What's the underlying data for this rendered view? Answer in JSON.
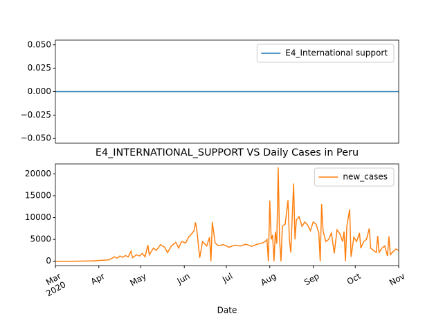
{
  "chart_data": [
    {
      "type": "line",
      "xlim": [
        0,
        245
      ],
      "ylim": [
        -0.055,
        0.055
      ],
      "yticks": [
        {
          "value": -0.05,
          "label": "−0.050"
        },
        {
          "value": -0.025,
          "label": "−0.025"
        },
        {
          "value": 0,
          "label": "0.000"
        },
        {
          "value": 0.025,
          "label": "0.025"
        },
        {
          "value": 0.05,
          "label": "0.050"
        }
      ],
      "legend": "upper right",
      "series": [
        {
          "name": "E4_International support",
          "color": "#1f77b4",
          "x": [
            0,
            245
          ],
          "values": [
            0,
            0
          ]
        }
      ]
    },
    {
      "type": "line",
      "title": "E4_INTERNATIONAL_SUPPORT VS Daily Cases in Peru",
      "x_label": "Date",
      "xlim": [
        0,
        245
      ],
      "xticks": [
        {
          "value": 0,
          "label": "Mar\n2020"
        },
        {
          "value": 31,
          "label": "Apr"
        },
        {
          "value": 61,
          "label": "May"
        },
        {
          "value": 92,
          "label": "Jun"
        },
        {
          "value": 122,
          "label": "Jul"
        },
        {
          "value": 153,
          "label": "Aug"
        },
        {
          "value": 184,
          "label": "Sep"
        },
        {
          "value": 214,
          "label": "Oct"
        },
        {
          "value": 245,
          "label": "Nov"
        }
      ],
      "ylim": [
        -1000,
        22300
      ],
      "yticks": [
        0,
        5000,
        10000,
        15000,
        20000
      ],
      "legend": "upper right",
      "series": [
        {
          "name": "new_cases",
          "color": "#ff7f0e",
          "x": [
            0,
            5,
            10,
            15,
            20,
            25,
            30,
            35,
            38,
            40,
            42,
            44,
            46,
            48,
            50,
            52,
            54,
            55,
            58,
            60,
            62,
            64,
            66,
            67,
            70,
            72,
            75,
            78,
            80,
            83,
            86,
            88,
            90,
            93,
            95,
            97,
            99,
            100,
            101,
            103,
            105,
            108,
            110,
            111,
            112,
            114,
            116,
            120,
            124,
            128,
            132,
            136,
            140,
            144,
            148,
            150,
            151,
            152,
            153,
            154,
            155,
            156,
            157,
            158,
            159,
            160,
            161,
            162,
            164,
            166,
            167,
            168,
            170,
            171,
            172,
            174,
            176,
            178,
            180,
            182,
            184,
            186,
            188,
            189,
            190,
            191,
            193,
            195,
            197,
            199,
            201,
            203,
            205,
            206,
            207,
            208,
            210,
            211,
            213,
            215,
            217,
            218,
            220,
            222,
            224,
            225,
            227,
            229,
            230,
            231,
            233,
            235,
            237,
            238,
            239,
            241,
            243,
            245
          ],
          "values": [
            0,
            0,
            0,
            10,
            30,
            80,
            150,
            250,
            300,
            600,
            1000,
            700,
            1200,
            900,
            1300,
            1000,
            2300,
            800,
            1500,
            1200,
            1800,
            1000,
            3700,
            1500,
            3000,
            2500,
            3800,
            3200,
            2000,
            3600,
            4300,
            3000,
            4500,
            4200,
            5500,
            6200,
            7000,
            8900,
            7000,
            800,
            4500,
            3500,
            5500,
            0,
            9000,
            4200,
            3600,
            3800,
            3200,
            3700,
            3500,
            3900,
            3400,
            3900,
            4200,
            4600,
            5000,
            0,
            13900,
            5000,
            6000,
            0,
            6800,
            4000,
            21500,
            5000,
            0,
            8000,
            8500,
            14000,
            5000,
            2000,
            17800,
            5000,
            9500,
            10200,
            8000,
            9000,
            8300,
            7000,
            9000,
            8500,
            6500,
            0,
            13100,
            7000,
            4500,
            5000,
            6500,
            1800,
            7200,
            6300,
            4500,
            6800,
            0,
            8000,
            11900,
            1000,
            5500,
            4500,
            6500,
            3000,
            4500,
            5000,
            7500,
            3000,
            2500,
            2000,
            5800,
            2000,
            3000,
            3500,
            1200,
            5700,
            1500,
            2200,
            2800,
            2500
          ]
        }
      ]
    }
  ]
}
